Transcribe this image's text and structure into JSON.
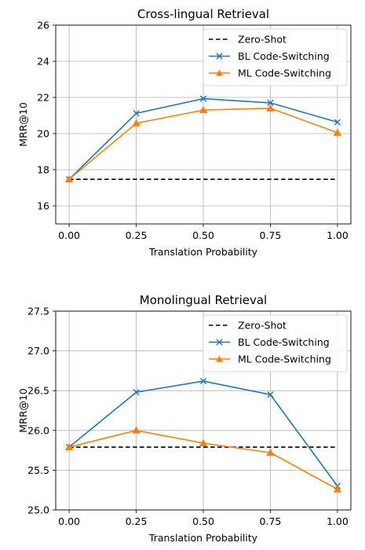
{
  "chart_data": [
    {
      "type": "line",
      "title": "Cross-lingual Retrieval",
      "xlabel": "Translation Probability",
      "ylabel": "MRR@10",
      "x": [
        0.0,
        0.25,
        0.5,
        0.75,
        1.0
      ],
      "x_tick_labels": [
        "0.00",
        "0.25",
        "0.50",
        "0.75",
        "1.00"
      ],
      "xlim": [
        -0.05,
        1.05
      ],
      "ylim": [
        15,
        26
      ],
      "y_ticks": [
        16,
        18,
        20,
        22,
        24,
        26
      ],
      "y_tick_labels": [
        "16",
        "18",
        "20",
        "22",
        "24",
        "26"
      ],
      "grid": true,
      "legend_position": "top-right",
      "series": [
        {
          "name": "Zero-Shot",
          "style": "dashed",
          "marker": "none",
          "color": "#000000",
          "values": [
            17.47,
            17.47,
            17.47,
            17.47,
            17.47
          ]
        },
        {
          "name": "BL Code-Switching",
          "style": "solid",
          "marker": "x",
          "color": "#1f77b4",
          "values": [
            17.47,
            21.12,
            21.93,
            21.7,
            20.63
          ]
        },
        {
          "name": "ML Code-Switching",
          "style": "solid",
          "marker": "triangle",
          "color": "#ff7f0e",
          "values": [
            17.47,
            20.57,
            21.3,
            21.4,
            20.05
          ]
        }
      ]
    },
    {
      "type": "line",
      "title": "Monolingual Retrieval",
      "xlabel": "Translation Probability",
      "ylabel": "MRR@10",
      "x": [
        0.0,
        0.25,
        0.5,
        0.75,
        1.0
      ],
      "x_tick_labels": [
        "0.00",
        "0.25",
        "0.50",
        "0.75",
        "1.00"
      ],
      "xlim": [
        -0.05,
        1.05
      ],
      "ylim": [
        25.0,
        27.5
      ],
      "y_ticks": [
        25.0,
        25.5,
        26.0,
        26.5,
        27.0,
        27.5
      ],
      "y_tick_labels": [
        "25.0",
        "25.5",
        "26.0",
        "26.5",
        "27.0",
        "27.5"
      ],
      "grid": true,
      "legend_position": "top-right",
      "series": [
        {
          "name": "Zero-Shot",
          "style": "dashed",
          "marker": "none",
          "color": "#000000",
          "values": [
            25.79,
            25.79,
            25.79,
            25.79,
            25.79
          ]
        },
        {
          "name": "BL Code-Switching",
          "style": "solid",
          "marker": "x",
          "color": "#1f77b4",
          "values": [
            25.79,
            26.48,
            26.62,
            26.45,
            25.3
          ]
        },
        {
          "name": "ML Code-Switching",
          "style": "solid",
          "marker": "triangle",
          "color": "#ff7f0e",
          "values": [
            25.79,
            26.0,
            25.84,
            25.72,
            25.26
          ]
        }
      ]
    }
  ]
}
